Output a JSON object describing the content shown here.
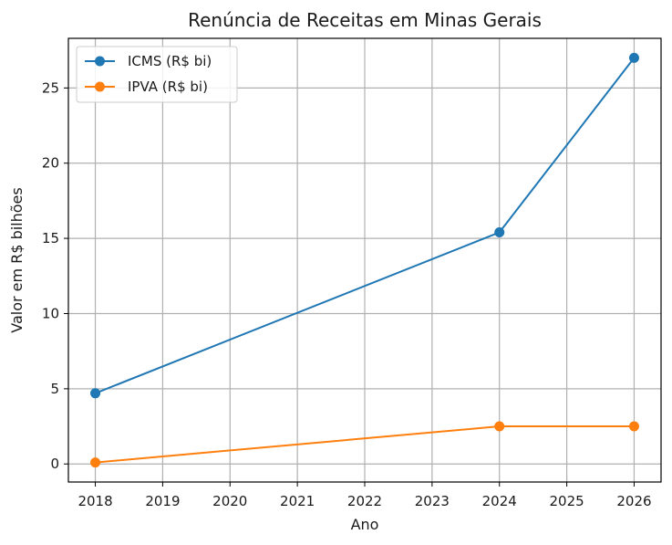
{
  "chart_data": {
    "type": "line",
    "title": "Renúncia de Receitas em Minas Gerais",
    "xlabel": "Ano",
    "ylabel": "Valor em R$ bilhões",
    "x_ticks": [
      "2018",
      "2019",
      "2020",
      "2021",
      "2022",
      "2023",
      "2024",
      "2025",
      "2026"
    ],
    "y_ticks": [
      "0",
      "5",
      "10",
      "15",
      "20",
      "25"
    ],
    "xlim": [
      2017.6,
      2026.4
    ],
    "ylim": [
      -1.2,
      28.3
    ],
    "grid": true,
    "legend_position": "top-left",
    "series": [
      {
        "name": "ICMS (R$ bi)",
        "color": "#1f77b4",
        "x": [
          2018,
          2024,
          2026
        ],
        "y": [
          4.7,
          15.4,
          27.0
        ]
      },
      {
        "name": "IPVA (R$ bi)",
        "color": "#ff7f0e",
        "x": [
          2018,
          2024,
          2026
        ],
        "y": [
          0.1,
          2.5,
          2.5
        ]
      }
    ]
  }
}
